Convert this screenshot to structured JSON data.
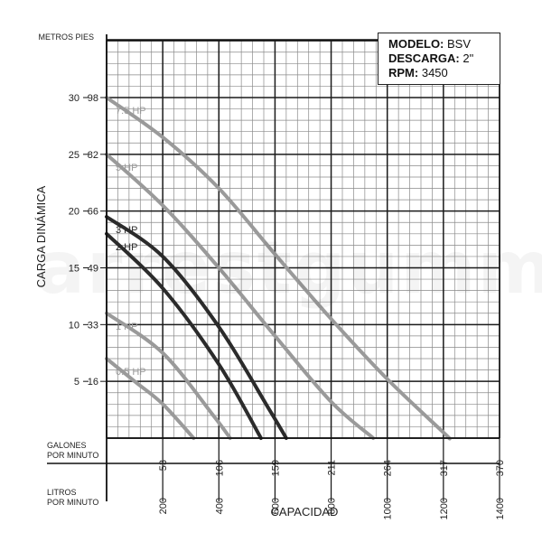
{
  "chart_data": {
    "type": "line",
    "title": "",
    "xlabel": "CAPACIDAD",
    "ylabel": "CARGA DINÁMICA",
    "head_units": [
      "METROS",
      "PIES"
    ],
    "ylim_m": [
      0,
      35
    ],
    "xlim_lpm": [
      0,
      1400
    ],
    "y_ticks_m": [
      {
        "m": "5",
        "ft": "16"
      },
      {
        "m": "10",
        "ft": "33"
      },
      {
        "m": "15",
        "ft": "49"
      },
      {
        "m": "20",
        "ft": "66"
      },
      {
        "m": "25",
        "ft": "82"
      },
      {
        "m": "30",
        "ft": "98"
      }
    ],
    "gpm_axis": {
      "label_lines": [
        "GALONES",
        "POR MINUTO"
      ],
      "ticks": [
        {
          "lpm": 200,
          "label": "53"
        },
        {
          "lpm": 400,
          "label": "106"
        },
        {
          "lpm": 600,
          "label": "159"
        },
        {
          "lpm": 800,
          "label": "211"
        },
        {
          "lpm": 1000,
          "label": "264"
        },
        {
          "lpm": 1200,
          "label": "317"
        },
        {
          "lpm": 1400,
          "label": "370"
        }
      ]
    },
    "lpm_axis": {
      "label_lines": [
        "LITROS",
        "POR MINUTO"
      ],
      "ticks": [
        {
          "lpm": 200,
          "label": "200"
        },
        {
          "lpm": 400,
          "label": "400"
        },
        {
          "lpm": 600,
          "label": "600"
        },
        {
          "lpm": 800,
          "label": "800"
        },
        {
          "lpm": 1000,
          "label": "1000"
        },
        {
          "lpm": 1200,
          "label": "1200"
        },
        {
          "lpm": 1400,
          "label": "1400"
        }
      ]
    },
    "grid": true,
    "series": [
      {
        "name": "7.5 HP",
        "color": "#9a9a9a",
        "x": [
          0,
          200,
          400,
          600,
          800,
          1000,
          1200,
          1220
        ],
        "y": [
          30,
          26.5,
          22,
          16.2,
          10.5,
          5.2,
          0.5,
          0
        ]
      },
      {
        "name": "5 HP",
        "color": "#9a9a9a",
        "x": [
          0,
          200,
          400,
          600,
          800,
          950
        ],
        "y": [
          25,
          20.5,
          15,
          9,
          3.2,
          0
        ]
      },
      {
        "name": "3 HP",
        "color": "#2b2b2b",
        "x": [
          0,
          200,
          400,
          580,
          640
        ],
        "y": [
          19.5,
          16,
          9.8,
          2.5,
          0
        ]
      },
      {
        "name": "2 HP",
        "color": "#2b2b2b",
        "x": [
          0,
          200,
          400,
          550
        ],
        "y": [
          18,
          13.2,
          6.5,
          0
        ]
      },
      {
        "name": "1 HP",
        "color": "#9a9a9a",
        "x": [
          0,
          200,
          380,
          440
        ],
        "y": [
          11,
          7.5,
          2,
          0
        ]
      },
      {
        "name": "0.5 HP",
        "color": "#9a9a9a",
        "x": [
          0,
          100,
          200,
          310
        ],
        "y": [
          7,
          5,
          3,
          0
        ]
      }
    ]
  },
  "info_box": {
    "model_label": "MODELO:",
    "model_value": "BSV",
    "discharge_label": "DESCARGA:",
    "discharge_value": "2\"",
    "rpm_label": "RPM:",
    "rpm_value": "3450"
  },
  "watermark_text": "arrestgumm"
}
